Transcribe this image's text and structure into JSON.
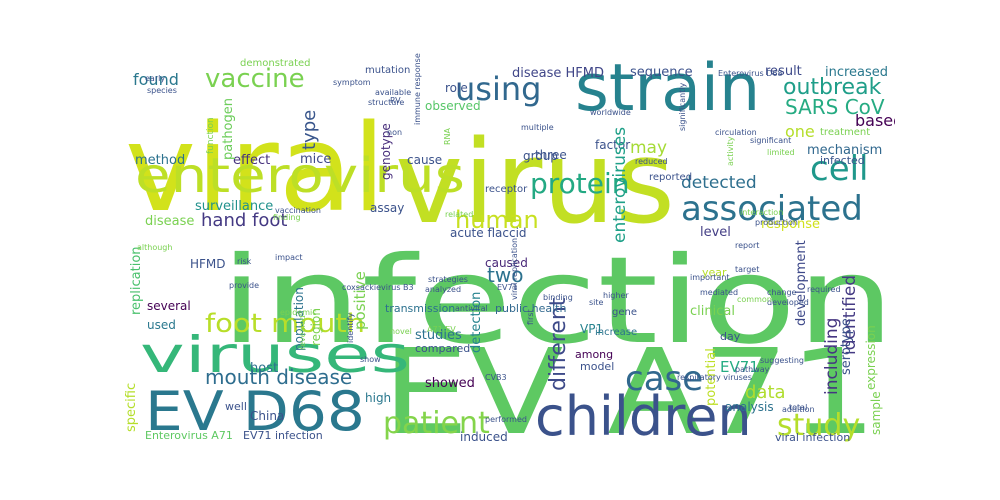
{
  "words": [
    {
      "text": "infection",
      "color": "#5dc863"
    },
    {
      "text": "EV A71",
      "color": "#5ec962"
    },
    {
      "text": "viral",
      "color": "#d2e21b"
    },
    {
      "text": "virus",
      "color": "#c2df23"
    },
    {
      "text": "strain",
      "color": "#26828e"
    },
    {
      "text": "children",
      "color": "#3b528b"
    },
    {
      "text": "enterovirus",
      "color": "#bddf26"
    },
    {
      "text": "viruses",
      "color": "#35b779"
    },
    {
      "text": "EV D68",
      "color": "#2a788e"
    },
    {
      "text": "cell",
      "color": "#1f988b"
    },
    {
      "text": "associated",
      "color": "#2c728e"
    },
    {
      "text": "protein",
      "color": "#23a983"
    },
    {
      "text": "human",
      "color": "#c8e020"
    },
    {
      "text": "patient",
      "color": "#84d44b"
    },
    {
      "text": "study",
      "color": "#b5de2b"
    },
    {
      "text": "case",
      "color": "#31688e"
    },
    {
      "text": "using",
      "color": "#31688e"
    },
    {
      "text": "vaccine",
      "color": "#7ad151"
    },
    {
      "text": "foot mouth",
      "color": "#b8de29"
    },
    {
      "text": "mouth disease",
      "color": "#2e6d8e"
    },
    {
      "text": "different",
      "color": "#3e4a89"
    },
    {
      "text": "outbreak",
      "color": "#1f9e89"
    },
    {
      "text": "SARS CoV",
      "color": "#25ab82"
    },
    {
      "text": "detected",
      "color": "#2e6f8e"
    },
    {
      "text": "hand foot",
      "color": "#443983"
    },
    {
      "text": "identified",
      "color": "#443a83"
    },
    {
      "text": "including",
      "color": "#453581"
    },
    {
      "text": "data",
      "color": "#b0dd2f"
    },
    {
      "text": "type",
      "color": "#39568c"
    },
    {
      "text": "found",
      "color": "#2a788e"
    },
    {
      "text": "based",
      "color": "#440154"
    },
    {
      "text": "one",
      "color": "#b5de2b"
    },
    {
      "text": "two",
      "color": "#2c718e"
    },
    {
      "text": "may",
      "color": "#a5db36"
    },
    {
      "text": "mice",
      "color": "#3e4989"
    },
    {
      "text": "effect",
      "color": "#46327e"
    },
    {
      "text": "method",
      "color": "#2c728e"
    },
    {
      "text": "disease HFMD",
      "color": "#404688"
    },
    {
      "text": "sequence",
      "color": "#3b518b"
    },
    {
      "text": "result",
      "color": "#3e4a89"
    },
    {
      "text": "increased",
      "color": "#2a788e"
    },
    {
      "text": "mechanism",
      "color": "#31688e"
    },
    {
      "text": "infected",
      "color": "#39558c"
    },
    {
      "text": "pathogen",
      "color": "#6ccd5a"
    },
    {
      "text": "genotype",
      "color": "#472d7b"
    },
    {
      "text": "observed",
      "color": "#56c667"
    },
    {
      "text": "role",
      "color": "#3b528b"
    },
    {
      "text": "cause",
      "color": "#3b528b"
    },
    {
      "text": "three",
      "color": "#3b528b"
    },
    {
      "text": "group",
      "color": "#3b528b"
    },
    {
      "text": "factor",
      "color": "#3b528b"
    },
    {
      "text": "surveillance",
      "color": "#21918c"
    },
    {
      "text": "assay",
      "color": "#3b528b"
    },
    {
      "text": "disease",
      "color": "#7ad151"
    },
    {
      "text": "caused",
      "color": "#482878"
    },
    {
      "text": "enteroviruses",
      "color": "#1fa088"
    },
    {
      "text": "positive",
      "color": "#7ad151"
    },
    {
      "text": "detection",
      "color": "#25838e"
    },
    {
      "text": "EV71",
      "color": "#25ac82"
    },
    {
      "text": "level",
      "color": "#433e85"
    },
    {
      "text": "response",
      "color": "#d0e11c"
    },
    {
      "text": "HFMD",
      "color": "#3b528b"
    },
    {
      "text": "replication",
      "color": "#4ac16d"
    },
    {
      "text": "region",
      "color": "#7ad151"
    },
    {
      "text": "population",
      "color": "#2c728e"
    },
    {
      "text": "acute flaccid",
      "color": "#3b528b"
    },
    {
      "text": "clinical",
      "color": "#7ad151"
    },
    {
      "text": "development",
      "color": "#3e4989"
    },
    {
      "text": "expression",
      "color": "#7ad151"
    },
    {
      "text": "serotype",
      "color": "#3b528b"
    },
    {
      "text": "several",
      "color": "#440154"
    },
    {
      "text": "used",
      "color": "#2a788e"
    },
    {
      "text": "transmission",
      "color": "#2c718e"
    },
    {
      "text": "public health",
      "color": "#31688e"
    },
    {
      "text": "studies",
      "color": "#2c728e"
    },
    {
      "text": "compared",
      "color": "#3b528b"
    },
    {
      "text": "VP1",
      "color": "#26828e"
    },
    {
      "text": "among",
      "color": "#440154"
    },
    {
      "text": "model",
      "color": "#3b528b"
    },
    {
      "text": "host",
      "color": "#2c728e"
    },
    {
      "text": "showed",
      "color": "#440154"
    },
    {
      "text": "potential",
      "color": "#bddf26"
    },
    {
      "text": "analysis",
      "color": "#2c728e"
    },
    {
      "text": "sample",
      "color": "#7ad151"
    },
    {
      "text": "specific",
      "color": "#b5de2b"
    },
    {
      "text": "high",
      "color": "#2a788e"
    },
    {
      "text": "China",
      "color": "#3b528b"
    },
    {
      "text": "well",
      "color": "#3b528b"
    },
    {
      "text": "Enterovirus A71",
      "color": "#5ec962"
    },
    {
      "text": "EV71 infection",
      "color": "#3b528b"
    },
    {
      "text": "induced",
      "color": "#3b528b"
    },
    {
      "text": "viral infection",
      "color": "#3b528b"
    },
    {
      "text": "increase",
      "color": "#2c728e"
    },
    {
      "text": "gene",
      "color": "#3b528b"
    },
    {
      "text": "day",
      "color": "#3b528b"
    },
    {
      "text": "year",
      "color": "#b5de2b"
    },
    {
      "text": "mutation",
      "color": "#3b528b"
    },
    {
      "text": "demonstrated",
      "color": "#7ad151"
    },
    {
      "text": "reported",
      "color": "#3b528b"
    },
    {
      "text": "treatment",
      "color": "#7ad151"
    },
    {
      "text": "receptor",
      "color": "#3b528b"
    },
    {
      "text": "vaccination",
      "color": "#3b528b"
    },
    {
      "text": "RV",
      "color": "#3b528b"
    },
    {
      "text": "RNA",
      "color": "#7ad151"
    },
    {
      "text": "immune response",
      "color": "#3b528b"
    },
    {
      "text": "function",
      "color": "#7ad151"
    },
    {
      "text": "non",
      "color": "#3b528b"
    },
    {
      "text": "symptom",
      "color": "#3b528b"
    },
    {
      "text": "structure",
      "color": "#3b528b"
    },
    {
      "text": "worldwide",
      "color": "#3b528b"
    },
    {
      "text": "multiple",
      "color": "#3b528b"
    },
    {
      "text": "reduced",
      "color": "#3b528b"
    },
    {
      "text": "circulation",
      "color": "#3b528b"
    },
    {
      "text": "significantly",
      "color": "#3b528b"
    },
    {
      "text": "activity",
      "color": "#7ad151"
    },
    {
      "text": "limited",
      "color": "#7ad151"
    },
    {
      "text": "significant",
      "color": "#3b528b"
    },
    {
      "text": "Enterovirus D68",
      "color": "#3b528b"
    },
    {
      "text": "related",
      "color": "#7ad151"
    },
    {
      "text": "production",
      "color": "#3b528b"
    },
    {
      "text": "interaction",
      "color": "#7ad151"
    },
    {
      "text": "binding",
      "color": "#3b528b"
    },
    {
      "text": "EV71",
      "color": "#3b528b"
    },
    {
      "text": "strategies",
      "color": "#3b528b"
    },
    {
      "text": "analyzed",
      "color": "#3b528b"
    },
    {
      "text": "A71 EV",
      "color": "#7ad151"
    },
    {
      "text": "coxsackievirus B3",
      "color": "#3b528b"
    },
    {
      "text": "viral replication",
      "color": "#3b528b"
    },
    {
      "text": "first",
      "color": "#3b528b"
    },
    {
      "text": "novel",
      "color": "#7ad151"
    },
    {
      "text": "antiviral",
      "color": "#3b528b"
    },
    {
      "text": "CVB3",
      "color": "#3b528b"
    },
    {
      "text": "although",
      "color": "#7ad151"
    },
    {
      "text": "impact",
      "color": "#3b528b"
    },
    {
      "text": "epidemic",
      "color": "#7ad151"
    },
    {
      "text": "finding",
      "color": "#7ad151"
    },
    {
      "text": "risk",
      "color": "#3b528b"
    },
    {
      "text": "provide",
      "color": "#3b528b"
    },
    {
      "text": "report",
      "color": "#3b528b"
    },
    {
      "text": "required",
      "color": "#3b528b"
    },
    {
      "text": "important",
      "color": "#3b528b"
    },
    {
      "text": "target",
      "color": "#3b528b"
    },
    {
      "text": "developed",
      "color": "#3b528b"
    },
    {
      "text": "mediated",
      "color": "#3b528b"
    },
    {
      "text": "common",
      "color": "#7ad151"
    },
    {
      "text": "respiratory viruses",
      "color": "#3b528b"
    },
    {
      "text": "revealed",
      "color": "#7ad151"
    },
    {
      "text": "pathway",
      "color": "#3b528b"
    },
    {
      "text": "suggesting",
      "color": "#3b528b"
    },
    {
      "text": "addition",
      "color": "#3b528b"
    },
    {
      "text": "show",
      "color": "#3b528b"
    },
    {
      "text": "identify",
      "color": "#3b528b"
    },
    {
      "text": "total",
      "color": "#3b528b"
    },
    {
      "text": "early",
      "color": "#3b528b"
    },
    {
      "text": "species",
      "color": "#3b528b"
    },
    {
      "text": "available",
      "color": "#3b528b"
    },
    {
      "text": "change",
      "color": "#3b528b"
    },
    {
      "text": "site",
      "color": "#3b528b"
    },
    {
      "text": "higher",
      "color": "#3b528b"
    },
    {
      "text": "performed",
      "color": "#3b528b"
    }
  ]
}
